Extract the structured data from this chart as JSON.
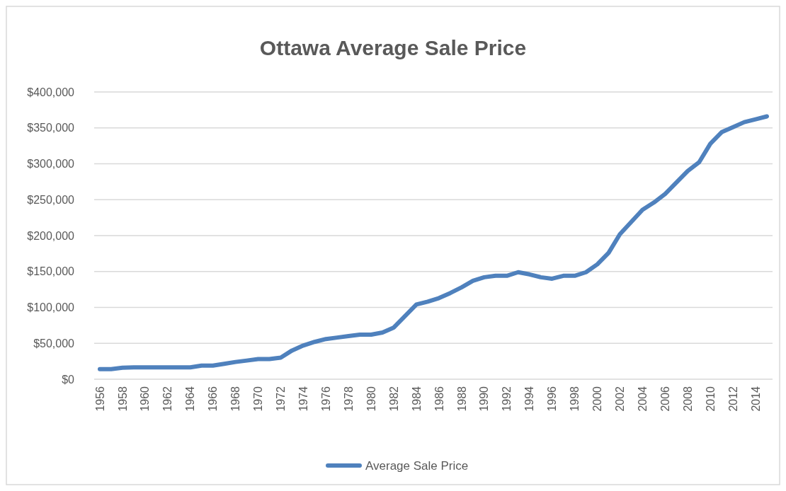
{
  "chart_data": {
    "type": "line",
    "title": "Ottawa Average Sale Price",
    "categories": [
      "1956",
      null,
      "1958",
      null,
      "1960",
      null,
      "1962",
      null,
      "1964",
      null,
      "1966",
      null,
      "1968",
      null,
      "1970",
      null,
      "1972",
      null,
      "1974",
      null,
      "1976",
      null,
      "1978",
      null,
      "1980",
      null,
      "1982",
      null,
      "1984",
      null,
      "1986",
      null,
      "1988",
      null,
      "1990",
      null,
      "1992",
      null,
      "1994",
      null,
      "1996",
      null,
      "1998",
      null,
      "2000",
      null,
      "2002",
      null,
      "2004",
      null,
      "2006",
      null,
      "2008",
      null,
      "2010",
      null,
      "2012",
      null,
      "2014",
      null
    ],
    "series": [
      {
        "name": "Average Sale Price",
        "color": "#4f81bd",
        "values": [
          14000,
          14000,
          16000,
          16500,
          16500,
          16500,
          16500,
          16500,
          16500,
          19000,
          19000,
          21500,
          24000,
          26000,
          28000,
          28000,
          30000,
          40000,
          47000,
          52000,
          56000,
          58000,
          60000,
          62000,
          62000,
          65000,
          72000,
          88000,
          104000,
          108000,
          113000,
          120000,
          128000,
          137000,
          142000,
          144000,
          144000,
          149000,
          146000,
          142000,
          140000,
          144000,
          144000,
          149000,
          160000,
          176000,
          202000,
          219000,
          236000,
          246000,
          258000,
          274000,
          290000,
          302000,
          328000,
          344000,
          351000,
          358000,
          362000,
          366000
        ]
      }
    ],
    "ylim": [
      0,
      400000
    ],
    "yticks": [
      {
        "value": 0,
        "label": "$0"
      },
      {
        "value": 50000,
        "label": "$50,000"
      },
      {
        "value": 100000,
        "label": "$100,000"
      },
      {
        "value": 150000,
        "label": "$150,000"
      },
      {
        "value": 200000,
        "label": "$200,000"
      },
      {
        "value": 250000,
        "label": "$250,000"
      },
      {
        "value": 300000,
        "label": "$300,000"
      },
      {
        "value": 350000,
        "label": "$350,000"
      },
      {
        "value": 400000,
        "label": "$400,000"
      }
    ],
    "grid": "y",
    "legend": "bottom",
    "marker": "none",
    "line_style": "solid"
  }
}
